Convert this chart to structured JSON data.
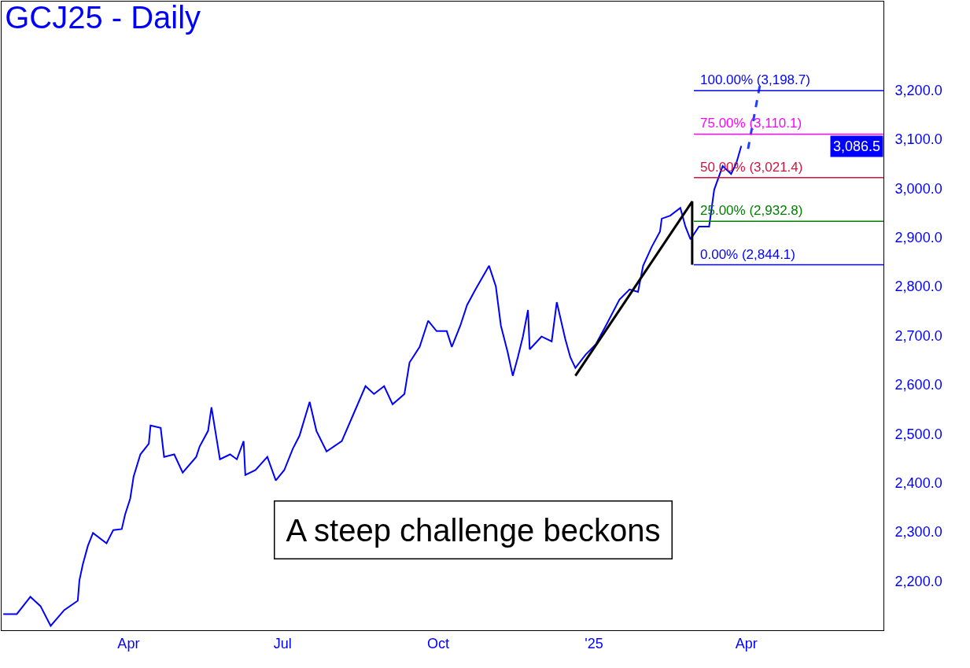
{
  "chart_data": {
    "type": "line",
    "title": "GCJ25 - Daily",
    "x": [
      "2024-01-18",
      "2024-01-26",
      "2024-02-03",
      "2024-02-09",
      "2024-02-15",
      "2024-02-23",
      "2024-03-02",
      "2024-03-03",
      "2024-03-05",
      "2024-03-08",
      "2024-03-11",
      "2024-03-19",
      "2024-03-23",
      "2024-03-28",
      "2024-03-30",
      "2024-04-02",
      "2024-04-04",
      "2024-04-08",
      "2024-04-13",
      "2024-04-14",
      "2024-04-20",
      "2024-04-22",
      "2024-04-28",
      "2024-05-03",
      "2024-05-11",
      "2024-05-13",
      "2024-05-18",
      "2024-05-20",
      "2024-05-25",
      "2024-05-31",
      "2024-06-04",
      "2024-06-08",
      "2024-06-09",
      "2024-06-15",
      "2024-06-22",
      "2024-06-27",
      "2024-07-02",
      "2024-07-07",
      "2024-07-11",
      "2024-07-17",
      "2024-07-21",
      "2024-07-27",
      "2024-08-05",
      "2024-08-13",
      "2024-08-19",
      "2024-08-24",
      "2024-08-30",
      "2024-09-04",
      "2024-09-11",
      "2024-09-14",
      "2024-09-20",
      "2024-09-25",
      "2024-09-30",
      "2024-10-06",
      "2024-10-09",
      "2024-10-14",
      "2024-10-18",
      "2024-10-23",
      "2024-10-31",
      "2024-11-04",
      "2024-11-07",
      "2024-11-11",
      "2024-11-14",
      "2024-11-17",
      "2024-11-20",
      "2024-11-23",
      "2024-11-24",
      "2024-12-01",
      "2024-12-07",
      "2024-12-10",
      "2024-12-15",
      "2024-12-18",
      "2024-12-21",
      "2024-12-27",
      "2025-01-02",
      "2025-01-08",
      "2025-01-16",
      "2025-01-22",
      "2025-01-27",
      "2025-01-30",
      "2025-02-04",
      "2025-02-09",
      "2025-02-10",
      "2025-02-15",
      "2025-02-21",
      "2025-02-24",
      "2025-02-27",
      "2025-03-04",
      "2025-03-10",
      "2025-03-13",
      "2025-03-18",
      "2025-03-23",
      "2025-03-26",
      "2025-03-29"
    ],
    "series": [
      {
        "color": "#0000ff",
        "values": [
          2133,
          2133,
          2168,
          2149,
          2109,
          2141,
          2160,
          2202,
          2234,
          2272,
          2298,
          2277,
          2304,
          2306,
          2336,
          2368,
          2413,
          2458,
          2480,
          2517,
          2512,
          2453,
          2458,
          2421,
          2453,
          2474,
          2506,
          2554,
          2448,
          2458,
          2448,
          2485,
          2416,
          2426,
          2453,
          2405,
          2426,
          2469,
          2496,
          2565,
          2506,
          2464,
          2485,
          2549,
          2597,
          2581,
          2597,
          2560,
          2581,
          2645,
          2677,
          2730,
          2709,
          2709,
          2677,
          2720,
          2762,
          2794,
          2842,
          2800,
          2720,
          2666,
          2618,
          2656,
          2698,
          2752,
          2672,
          2698,
          2688,
          2768,
          2693,
          2656,
          2634,
          2661,
          2682,
          2720,
          2773,
          2794,
          2789,
          2842,
          2880,
          2912,
          2938,
          2944,
          2960,
          2922,
          2896,
          2922,
          2922,
          2997,
          3045,
          3029,
          3050,
          3086
        ]
      },
      {
        "color": "#000000",
        "x": [
          "2024-12-21",
          "2025-02-28",
          "2025-02-28"
        ],
        "values": [
          2618,
          2973,
          2844
        ]
      },
      {
        "color": "#1f3fff",
        "line_style": "dashed",
        "x": [
          "2025-04-02",
          "2025-04-09"
        ],
        "values": [
          3080,
          3210
        ]
      }
    ],
    "xlim": [
      "2024-01-17",
      "2025-06-21"
    ],
    "xticks": [
      {
        "value": "2024-04-01",
        "label": "Apr"
      },
      {
        "value": "2024-07-01",
        "label": "Jul"
      },
      {
        "value": "2024-10-01",
        "label": "Oct"
      },
      {
        "value": "2025-01-01",
        "label": "'25"
      },
      {
        "value": "2025-04-01",
        "label": "Apr"
      }
    ],
    "ylim": [
      2100,
      3380
    ],
    "yticks": [
      {
        "value": 2200,
        "label": "2,200.0"
      },
      {
        "value": 2300,
        "label": "2,300.0"
      },
      {
        "value": 2400,
        "label": "2,400.0"
      },
      {
        "value": 2500,
        "label": "2,500.0"
      },
      {
        "value": 2600,
        "label": "2,600.0"
      },
      {
        "value": 2700,
        "label": "2,700.0"
      },
      {
        "value": 2800,
        "label": "2,800.0"
      },
      {
        "value": 2900,
        "label": "2,900.0"
      },
      {
        "value": 3000,
        "label": "3,000.0"
      },
      {
        "value": 3100,
        "label": "3,100.0"
      },
      {
        "value": 3200,
        "label": "3,200.0"
      }
    ],
    "ref_lines": [
      {
        "axis": "y",
        "value": 3198.7,
        "label": "100.00% (3,198.7)",
        "color": "#0000ff"
      },
      {
        "axis": "y",
        "value": 3110.1,
        "label": "75.00% (3,110.1)",
        "color": "#ff00ff"
      },
      {
        "axis": "y",
        "value": 3021.4,
        "label": "50.00% (3,021.4)",
        "color": "#d2143c"
      },
      {
        "axis": "y",
        "value": 2932.8,
        "label": "25.00% (2,932.8)",
        "color": "#008000"
      },
      {
        "axis": "y",
        "value": 2844.1,
        "label": "0.00% (2,844.1)",
        "color": "#0000ff"
      }
    ],
    "annotations": [
      "3,086.5",
      "A steep challenge beckons"
    ]
  }
}
